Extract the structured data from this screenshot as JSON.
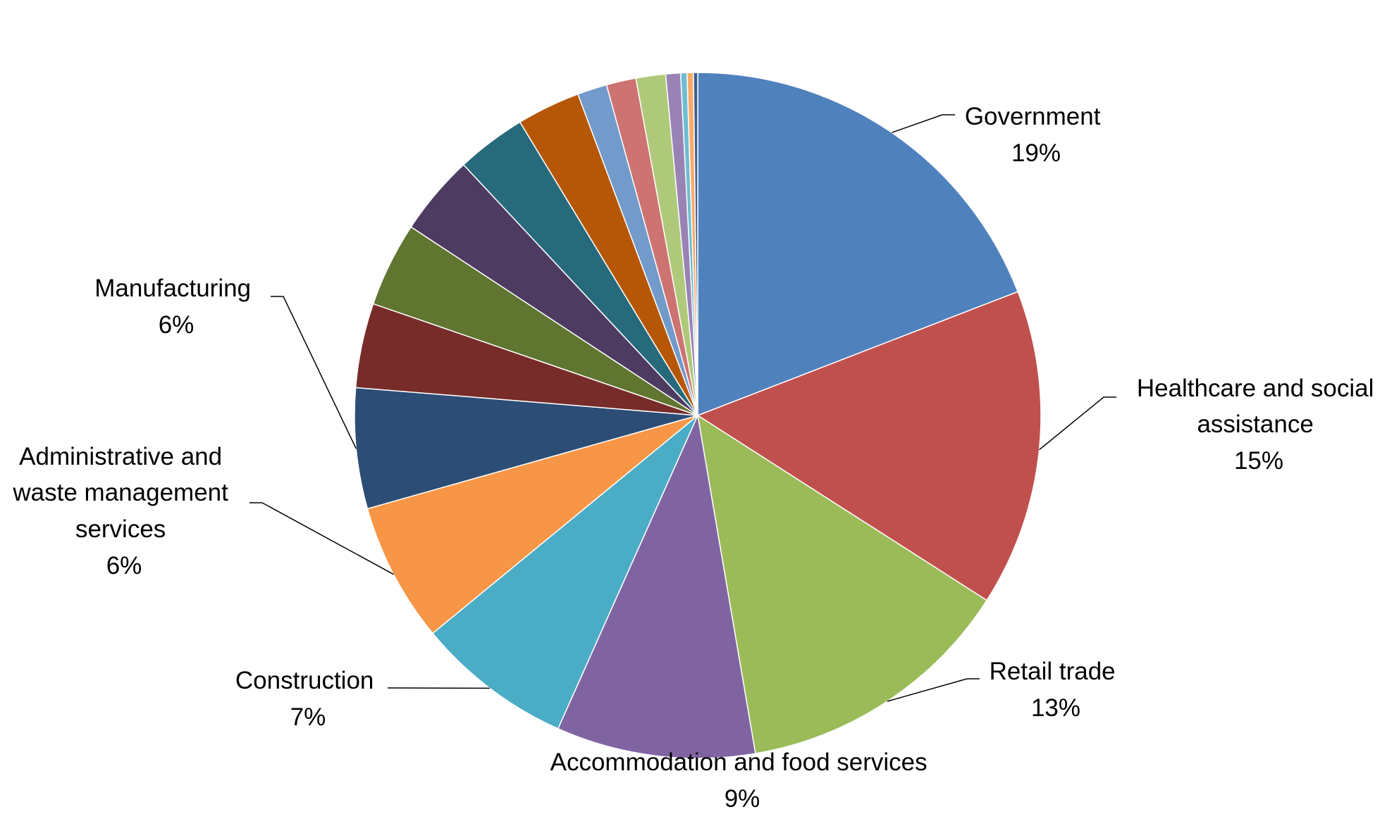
{
  "chart_data": {
    "type": "pie",
    "title": "",
    "start_angle_deg": 0,
    "direction": "clockwise",
    "slices": [
      {
        "label": "Government",
        "pct_label": "19%",
        "value": 19.2,
        "color": "#4f81bd",
        "labeled": true
      },
      {
        "label": "Healthcare and social assistance",
        "pct_label": "15%",
        "value": 15.0,
        "color": "#c0504d",
        "labeled": true
      },
      {
        "label": "Retail trade",
        "pct_label": "13%",
        "value": 13.3,
        "color": "#9bbb59",
        "labeled": true
      },
      {
        "label": "Accommodation and food services",
        "pct_label": "9%",
        "value": 9.4,
        "color": "#8064a2",
        "labeled": true
      },
      {
        "label": "Construction",
        "pct_label": "7%",
        "value": 7.4,
        "color": "#4bacc6",
        "labeled": true
      },
      {
        "label": "Administrative and waste management services",
        "pct_label": "6%",
        "value": 6.6,
        "color": "#f79646",
        "labeled": true
      },
      {
        "label": "Manufacturing",
        "pct_label": "6%",
        "value": 5.7,
        "color": "#2c4d75",
        "labeled": true
      },
      {
        "label": "",
        "pct_label": "",
        "value": 4.0,
        "color": "#772c2a",
        "labeled": false
      },
      {
        "label": "",
        "pct_label": "",
        "value": 4.0,
        "color": "#5f7530",
        "labeled": false
      },
      {
        "label": "",
        "pct_label": "",
        "value": 3.8,
        "color": "#4d3b62",
        "labeled": false
      },
      {
        "label": "",
        "pct_label": "",
        "value": 3.3,
        "color": "#276a7c",
        "labeled": false
      },
      {
        "label": "",
        "pct_label": "",
        "value": 3.0,
        "color": "#b65708",
        "labeled": false
      },
      {
        "label": "",
        "pct_label": "",
        "value": 1.4,
        "color": "#729aca",
        "labeled": false
      },
      {
        "label": "",
        "pct_label": "",
        "value": 1.4,
        "color": "#cd7371",
        "labeled": false
      },
      {
        "label": "",
        "pct_label": "",
        "value": 1.4,
        "color": "#afc97a",
        "labeled": false
      },
      {
        "label": "",
        "pct_label": "",
        "value": 0.7,
        "color": "#9983b5",
        "labeled": false
      },
      {
        "label": "",
        "pct_label": "",
        "value": 0.3,
        "color": "#6fbdd1",
        "labeled": false
      },
      {
        "label": "",
        "pct_label": "",
        "value": 0.3,
        "color": "#f9ab6b",
        "labeled": false
      },
      {
        "label": "",
        "pct_label": "",
        "value": 0.2,
        "color": "#3a5f8f",
        "labeled": false
      }
    ]
  }
}
